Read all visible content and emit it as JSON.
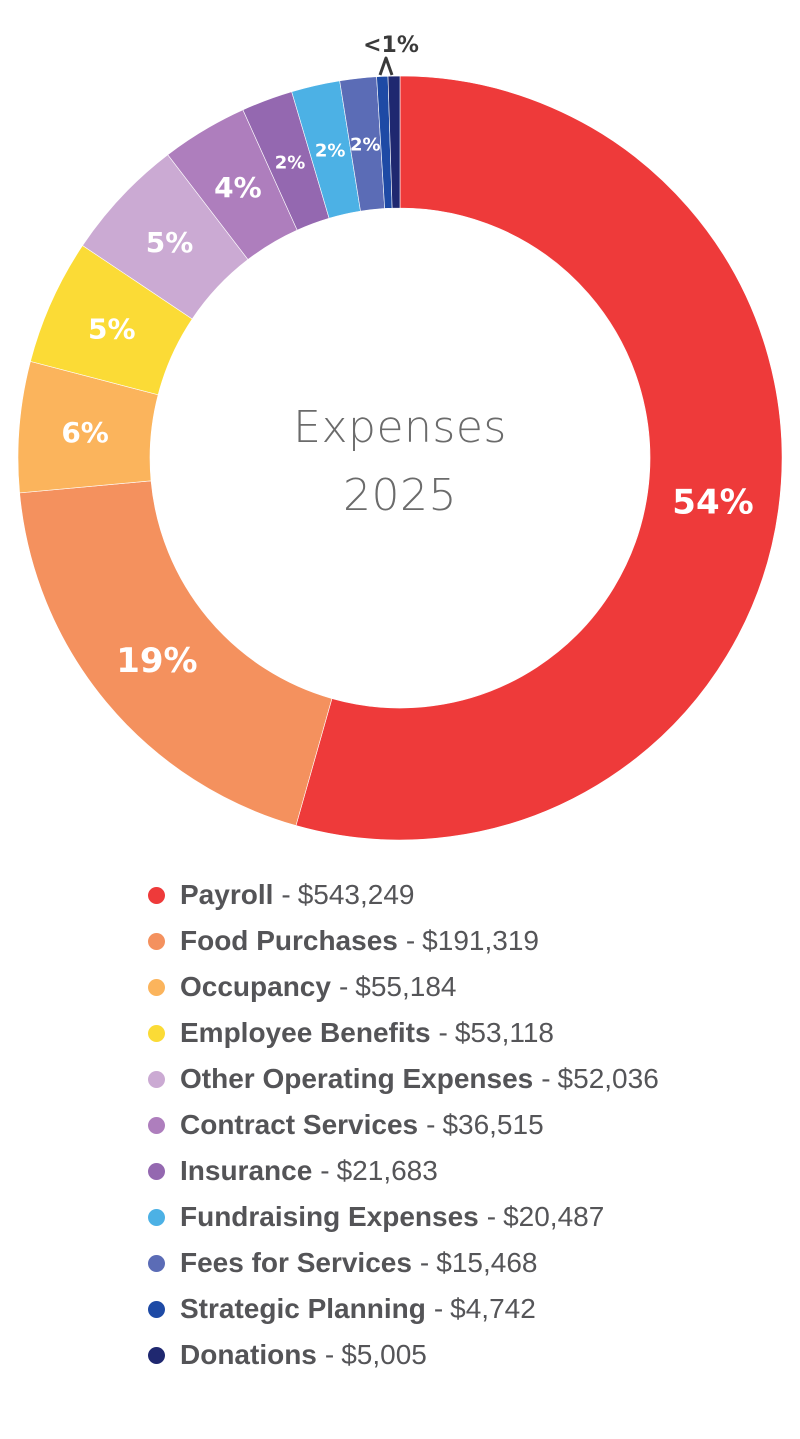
{
  "chart_data": {
    "type": "pie",
    "title": "Expenses",
    "subtitle": "2025",
    "slices": [
      {
        "name": "Payroll",
        "value": 543249,
        "percent_label": "54%",
        "color": "#ee3a3a"
      },
      {
        "name": "Food Purchases",
        "value": 191319,
        "percent_label": "19%",
        "color": "#f4915e"
      },
      {
        "name": "Occupancy",
        "value": 55184,
        "percent_label": "6%",
        "color": "#fbb45c"
      },
      {
        "name": "Employee Benefits",
        "value": 53118,
        "percent_label": "5%",
        "color": "#fbdb36"
      },
      {
        "name": "Other Operating Expenses",
        "value": 52036,
        "percent_label": "5%",
        "color": "#cbaad3"
      },
      {
        "name": "Contract Services",
        "value": 36515,
        "percent_label": "4%",
        "color": "#ae7ebd"
      },
      {
        "name": "Insurance",
        "value": 21683,
        "percent_label": "2%",
        "color": "#9468b0"
      },
      {
        "name": "Fundraising Expenses",
        "value": 20487,
        "percent_label": "2%",
        "color": "#4cb1e5"
      },
      {
        "name": "Fees for Services",
        "value": 15468,
        "percent_label": "2%",
        "color": "#5b6cb6"
      },
      {
        "name": "Strategic Planning",
        "value": 4742,
        "percent_label": "",
        "color": "#1e4aa5"
      },
      {
        "name": "Donations",
        "value": 5005,
        "percent_label": "",
        "color": "#1f2870"
      }
    ],
    "small_slices_label": "<1%",
    "legend_position": "bottom"
  },
  "legend": [
    {
      "name": "Payroll",
      "value": "$543,249"
    },
    {
      "name": "Food Purchases",
      "value": "$191,319"
    },
    {
      "name": "Occupancy",
      "value": "$55,184"
    },
    {
      "name": "Employee Benefits",
      "value": "$53,118"
    },
    {
      "name": "Other Operating Expenses",
      "value": "$52,036"
    },
    {
      "name": "Contract Services",
      "value": "$36,515"
    },
    {
      "name": "Insurance",
      "value": "$21,683"
    },
    {
      "name": "Fundraising Expenses",
      "value": "$20,487"
    },
    {
      "name": "Fees for Services",
      "value": "$15,468"
    },
    {
      "name": "Strategic Planning",
      "value": "$4,742"
    },
    {
      "name": "Donations",
      "value": "$5,005"
    }
  ],
  "legend_separator": "-",
  "colors": {
    "center_text": "#6b6b6b",
    "legend_text": "#545457"
  }
}
